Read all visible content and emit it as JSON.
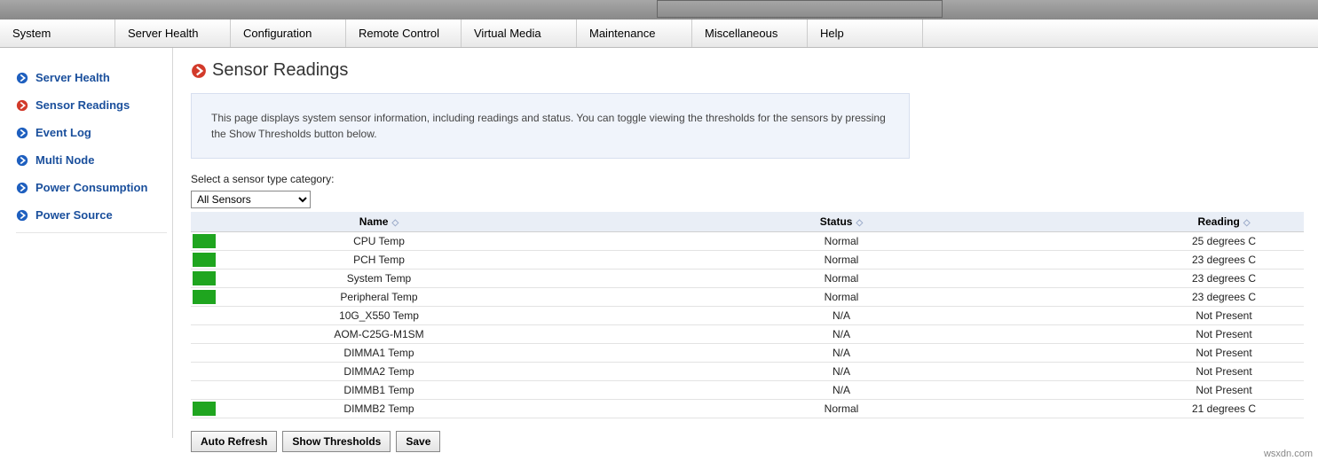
{
  "colors": {
    "blue_icon": "#1e5fbf",
    "red_icon": "#d23a2a",
    "normal_green": "#1fa51f",
    "header_bg": "#e9eef6",
    "info_bg": "#f0f4fb"
  },
  "top_menu": [
    "System",
    "Server Health",
    "Configuration",
    "Remote Control",
    "Virtual Media",
    "Maintenance",
    "Miscellaneous",
    "Help"
  ],
  "sidebar": {
    "items": [
      {
        "label": "Server Health",
        "active": false
      },
      {
        "label": "Sensor Readings",
        "active": true
      },
      {
        "label": "Event Log",
        "active": false
      },
      {
        "label": "Multi Node",
        "active": false
      },
      {
        "label": "Power Consumption",
        "active": false
      },
      {
        "label": "Power Source",
        "active": false
      }
    ]
  },
  "page": {
    "title": "Sensor Readings",
    "info": "This page displays system sensor information, including readings and status. You can toggle viewing the thresholds for the sensors by pressing the Show Thresholds button below.",
    "category_label": "Select a sensor type category:",
    "category_selected": "All Sensors"
  },
  "table": {
    "columns": [
      "Name",
      "Status",
      "Reading"
    ],
    "rows": [
      {
        "indicator": "green",
        "name": "CPU Temp",
        "status": "Normal",
        "reading": "25 degrees C"
      },
      {
        "indicator": "green",
        "name": "PCH Temp",
        "status": "Normal",
        "reading": "23 degrees C"
      },
      {
        "indicator": "green",
        "name": "System Temp",
        "status": "Normal",
        "reading": "23 degrees C"
      },
      {
        "indicator": "green",
        "name": "Peripheral Temp",
        "status": "Normal",
        "reading": "23 degrees C"
      },
      {
        "indicator": "none",
        "name": "10G_X550 Temp",
        "status": "N/A",
        "reading": "Not Present"
      },
      {
        "indicator": "none",
        "name": "AOM-C25G-M1SM",
        "status": "N/A",
        "reading": "Not Present"
      },
      {
        "indicator": "none",
        "name": "DIMMA1 Temp",
        "status": "N/A",
        "reading": "Not Present"
      },
      {
        "indicator": "none",
        "name": "DIMMA2 Temp",
        "status": "N/A",
        "reading": "Not Present"
      },
      {
        "indicator": "none",
        "name": "DIMMB1 Temp",
        "status": "N/A",
        "reading": "Not Present"
      },
      {
        "indicator": "green",
        "name": "DIMMB2 Temp",
        "status": "Normal",
        "reading": "21 degrees C"
      }
    ]
  },
  "buttons": {
    "auto_refresh": "Auto Refresh",
    "show_thresholds": "Show Thresholds",
    "save": "Save"
  },
  "watermark": "wsxdn.com"
}
